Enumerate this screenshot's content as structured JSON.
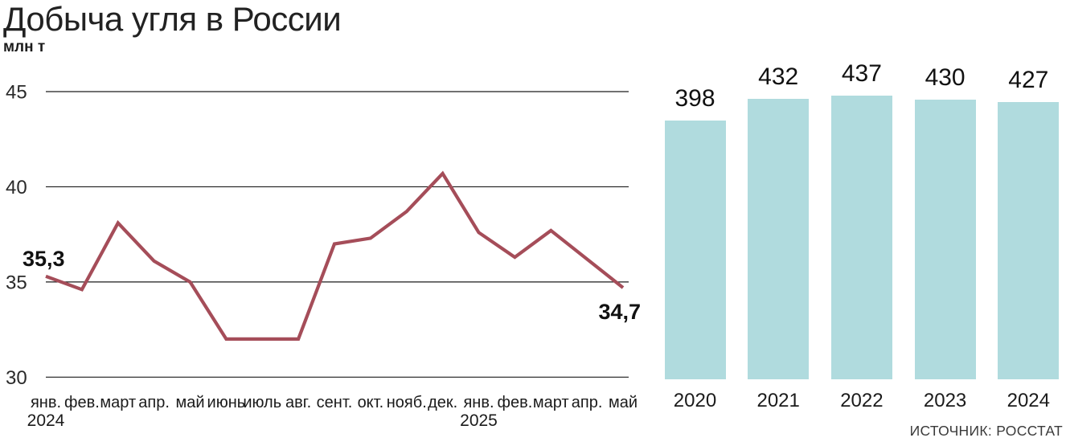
{
  "title": "Добыча угля в России",
  "subtitle": "млн т",
  "source": "ИСТОЧНИК: РОССТАТ",
  "colors": {
    "line": "#a54d59",
    "bar": "#b0dbde",
    "grid": "#1c1c1c",
    "text": "#1b1b1b"
  },
  "chart_data": [
    {
      "type": "line",
      "title": "Добыча угля в России",
      "ylabel": "млн т",
      "x_labels": [
        "янв.",
        "фев.",
        "март",
        "апр.",
        "май",
        "июнь",
        "июль",
        "авг.",
        "сент.",
        "окт.",
        "нояб.",
        "дек.",
        "янв.",
        "фев.",
        "март",
        "апр.",
        "май"
      ],
      "x_year_labels": [
        {
          "label": "2024",
          "index": 0
        },
        {
          "label": "2025",
          "index": 12
        }
      ],
      "values": [
        35.3,
        34.6,
        38.1,
        36.1,
        35.0,
        32.0,
        32.0,
        32.0,
        37.0,
        37.3,
        38.7,
        40.7,
        37.6,
        36.3,
        37.7,
        36.2,
        34.7
      ],
      "y_ticks": [
        45,
        40,
        35,
        30
      ],
      "ylim": [
        30,
        45
      ],
      "grid": true,
      "legend": "none",
      "annotations": [
        {
          "index": 0,
          "text": "35,3",
          "placement": "above-left"
        },
        {
          "index": 16,
          "text": "34,7",
          "placement": "below-right"
        }
      ]
    },
    {
      "type": "bar",
      "categories": [
        "2020",
        "2021",
        "2022",
        "2023",
        "2024"
      ],
      "values": [
        398,
        432,
        437,
        430,
        427
      ],
      "ylim": [
        0,
        445
      ],
      "grid": false,
      "data_labels": true
    }
  ]
}
